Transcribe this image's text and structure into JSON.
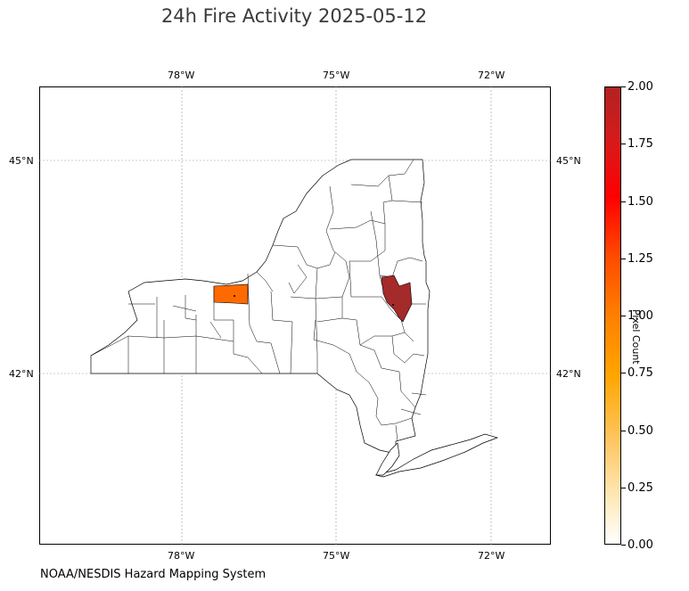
{
  "title": "24h Fire Activity 2025-05-12",
  "source": "NOAA/NESDIS Hazard Mapping System",
  "map": {
    "region": "New York State counties",
    "projection": "PlateCarree",
    "lon_range": [
      -80.8,
      -70.9
    ],
    "lat_range": [
      39.6,
      46.1
    ],
    "gridlines": true,
    "lon_ticks": [
      "78°W",
      "75°W",
      "72°W"
    ],
    "lat_ticks": [
      "45°N",
      "42°N"
    ],
    "highlighted_counties": [
      {
        "name": "Genesee",
        "pixel_count": 1,
        "color": "#ff6a00"
      },
      {
        "name": "Rensselaer",
        "pixel_count": 2,
        "color": "#b22222"
      }
    ]
  },
  "colorbar": {
    "label": "Pixel Count",
    "colormap": "YlOrRd-like (white → orange → red → firebrick)",
    "min": 0.0,
    "max": 2.0,
    "ticks": [
      "0.00",
      "0.25",
      "0.50",
      "0.75",
      "1.00",
      "1.25",
      "1.50",
      "1.75",
      "2.00"
    ]
  }
}
